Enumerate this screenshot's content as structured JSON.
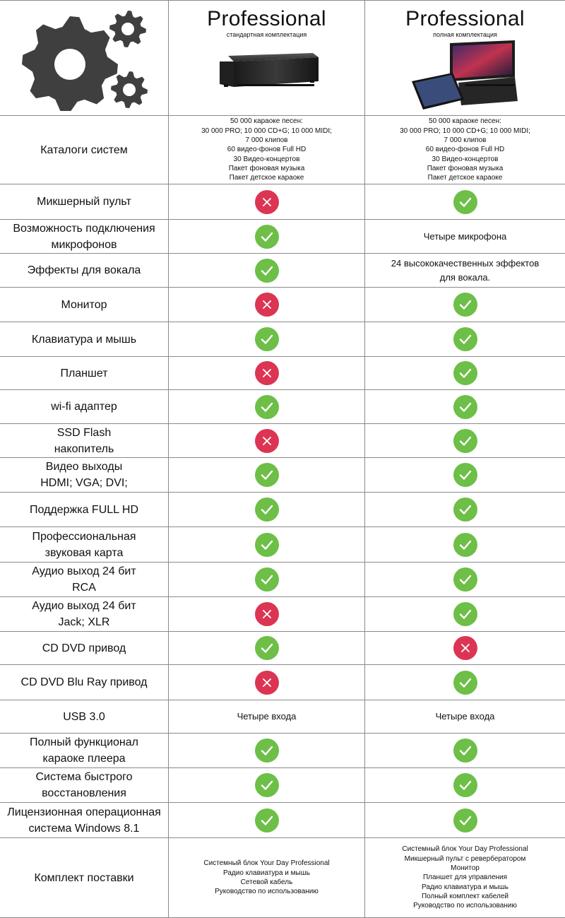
{
  "header": {
    "gear_icon": "gears-icon",
    "columns": [
      {
        "title": "Professional",
        "subtitle": "стандартная комплектация",
        "image": "server-unit-image"
      },
      {
        "title": "Professional",
        "subtitle": "полная комплектация",
        "image": "full-kit-image"
      }
    ]
  },
  "colors": {
    "yes": "#6dbf47",
    "no": "#dc3553",
    "border": "#8a8a8a"
  },
  "rows": [
    {
      "feature": "Каталоги систем",
      "standard": {
        "type": "small",
        "text": "50 000 караоке песен:\n30 000 PRO; 10 000 CD+G; 10 000 MIDI;\n7 000 клипов\n60 видео-фонов Full HD\n30 Видео-концертов\nПакет фоновая музыка\nПакет детское караоке"
      },
      "full": {
        "type": "small",
        "text": "50 000 караоке песен:\n30 000 PRO; 10 000 CD+G; 10 000 MIDI;\n7 000 клипов\n60 видео-фонов Full HD\n30 Видео-концертов\nПакет фоновая музыка\nПакет детское караоке"
      }
    },
    {
      "feature": "Микшерный пульт",
      "standard": {
        "type": "no"
      },
      "full": {
        "type": "yes"
      }
    },
    {
      "feature": "Возможность подключения\nмикрофонов",
      "standard": {
        "type": "yes"
      },
      "full": {
        "type": "mid",
        "text": "Четыре микрофона"
      }
    },
    {
      "feature": "Эффекты для вокала",
      "standard": {
        "type": "yes"
      },
      "full": {
        "type": "mid",
        "text": "24 высококачественных эффектов\nдля вокала."
      }
    },
    {
      "feature": "Монитор",
      "standard": {
        "type": "no"
      },
      "full": {
        "type": "yes"
      }
    },
    {
      "feature": "Клавиатура и мышь",
      "standard": {
        "type": "yes"
      },
      "full": {
        "type": "yes"
      }
    },
    {
      "feature": "Планшет",
      "standard": {
        "type": "no"
      },
      "full": {
        "type": "yes"
      }
    },
    {
      "feature": "wi-fi адаптер",
      "standard": {
        "type": "yes"
      },
      "full": {
        "type": "yes"
      }
    },
    {
      "feature": "SSD Flash\nнакопитель",
      "standard": {
        "type": "no"
      },
      "full": {
        "type": "yes"
      }
    },
    {
      "feature": "Видео выходы\nHDMI; VGA; DVI;",
      "standard": {
        "type": "yes"
      },
      "full": {
        "type": "yes"
      }
    },
    {
      "feature": "Поддержка FULL HD",
      "standard": {
        "type": "yes"
      },
      "full": {
        "type": "yes"
      }
    },
    {
      "feature": "Профессиональная\nзвуковая карта",
      "standard": {
        "type": "yes"
      },
      "full": {
        "type": "yes"
      }
    },
    {
      "feature": "Аудио выход 24 бит\nRCA",
      "standard": {
        "type": "yes"
      },
      "full": {
        "type": "yes"
      }
    },
    {
      "feature": "Аудио выход 24 бит\nJack; XLR",
      "standard": {
        "type": "no"
      },
      "full": {
        "type": "yes"
      }
    },
    {
      "feature": "CD DVD привод",
      "standard": {
        "type": "yes"
      },
      "full": {
        "type": "no"
      }
    },
    {
      "feature": "CD DVD Blu Ray привод",
      "standard": {
        "type": "no"
      },
      "full": {
        "type": "yes"
      }
    },
    {
      "feature": "USB 3.0",
      "standard": {
        "type": "mid",
        "text": "Четыре входа"
      },
      "full": {
        "type": "mid",
        "text": "Четыре входа"
      }
    },
    {
      "feature": "Полный функционал\nкараоке плеера",
      "standard": {
        "type": "yes"
      },
      "full": {
        "type": "yes"
      }
    },
    {
      "feature": "Система быстрого\nвосстановления",
      "standard": {
        "type": "yes"
      },
      "full": {
        "type": "yes"
      }
    },
    {
      "feature": "Лицензионная операционная\nсистема Windows 8.1",
      "standard": {
        "type": "yes"
      },
      "full": {
        "type": "yes"
      }
    },
    {
      "feature": "Комплект поставки",
      "standard": {
        "type": "small",
        "text": "Системный блок Your Day Professional\nРадио клавиатура и мышь\nСетевой кабель\nРуководство по использованию"
      },
      "full": {
        "type": "small",
        "text": "Системный блок Your Day Professional\nМикшерный пульт с ревербератором\nМонитор\nПланшет для управления\nРадио клавиатура и мышь\nПолный комплект кабелей\nРуководство по использованию"
      }
    }
  ]
}
